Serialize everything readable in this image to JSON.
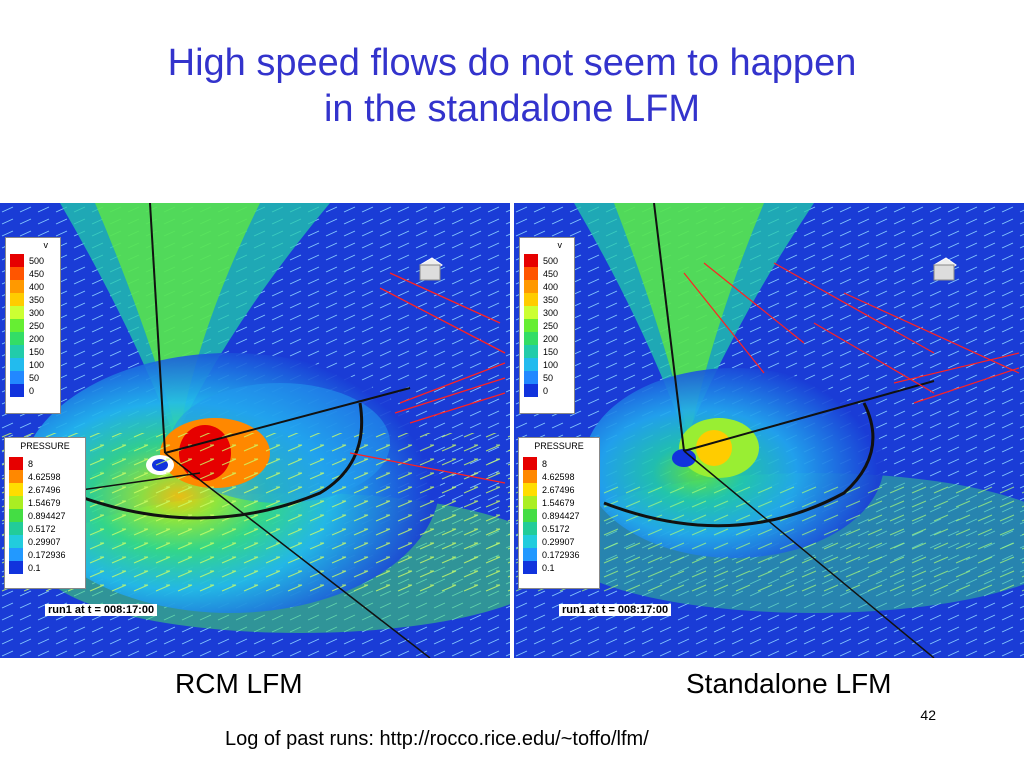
{
  "slide": {
    "title_line1": "High speed flows do not seem to happen",
    "title_line2": "in the standalone LFM",
    "page_number": "42",
    "footer": "Log of past runs: http://rocco.rice.edu/~toffo/lfm/"
  },
  "panels": [
    {
      "caption": "RCM LFM",
      "timestamp": "run1 at t = 008:17:00",
      "velocity_legend": {
        "title": "v",
        "levels": [
          "500",
          "450",
          "400",
          "350",
          "300",
          "250",
          "200",
          "150",
          "100",
          "50",
          "0"
        ]
      },
      "pressure_legend": {
        "title": "PRESSURE",
        "levels": [
          "8",
          "4.62598",
          "2.67496",
          "1.54679",
          "0.894427",
          "0.5172",
          "0.29907",
          "0.172936",
          "0.1"
        ]
      }
    },
    {
      "caption": "Standalone LFM",
      "timestamp": "run1 at t = 008:17:00",
      "velocity_legend": {
        "title": "v",
        "levels": [
          "500",
          "450",
          "400",
          "350",
          "300",
          "250",
          "200",
          "150",
          "100",
          "50",
          "0"
        ]
      },
      "pressure_legend": {
        "title": "PRESSURE",
        "levels": [
          "8",
          "4.62598",
          "2.67496",
          "1.54679",
          "0.894427",
          "0.5172",
          "0.29907",
          "0.172936",
          "0.1"
        ]
      }
    }
  ],
  "colors": {
    "title": "#3333cc",
    "velocity_scale": [
      "#e60000",
      "#ff5500",
      "#ff9900",
      "#ffcc00",
      "#ccff33",
      "#66ee33",
      "#33dd66",
      "#22ccaa",
      "#22bbee",
      "#2288ff",
      "#1133dd"
    ],
    "pressure_scale": [
      "#e60000",
      "#ff8800",
      "#ffdd00",
      "#aaee22",
      "#44dd44",
      "#22cc99",
      "#22ccdd",
      "#2299ff",
      "#1133dd"
    ],
    "background_field": "#1a3cd6"
  }
}
